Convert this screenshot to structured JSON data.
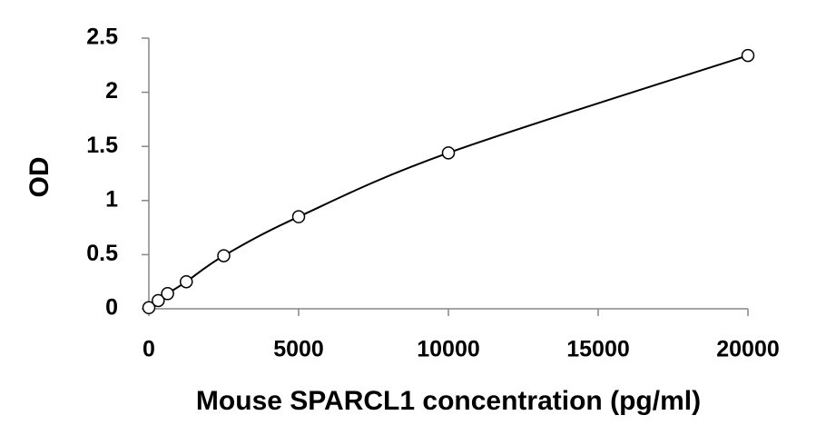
{
  "chart_data": {
    "type": "scatter",
    "xlabel": "Mouse SPARCL1 concentration (pg/ml)",
    "ylabel": "OD",
    "x": [
      0,
      312.5,
      625,
      1250,
      2500,
      5000,
      10000,
      20000
    ],
    "values": [
      0.01,
      0.076,
      0.14,
      0.25,
      0.49,
      0.85,
      1.44,
      2.34
    ],
    "color": "#000000",
    "trendline": true,
    "xlim": [
      0,
      20000
    ],
    "xticks": [
      0,
      5000,
      10000,
      15000,
      20000
    ],
    "ylim": [
      0,
      2.5
    ],
    "yticks": [
      0,
      0.5,
      1,
      1.5,
      2,
      2.5
    ]
  }
}
